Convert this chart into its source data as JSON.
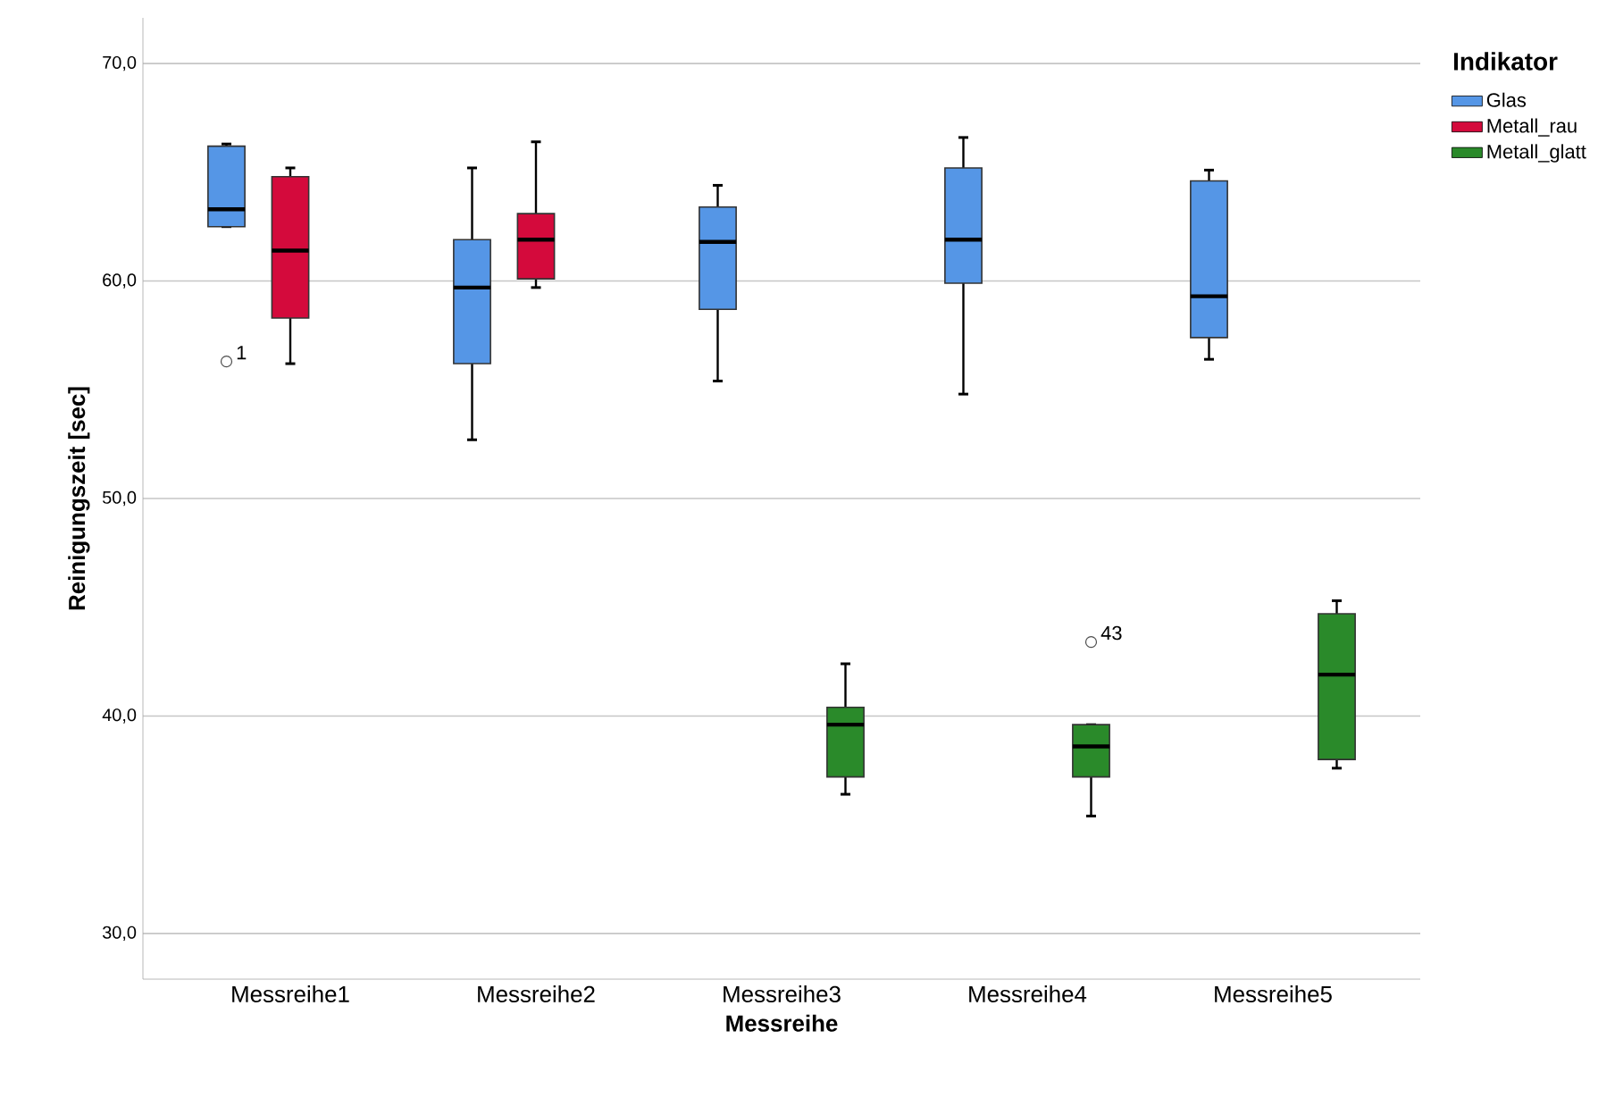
{
  "chart_data": {
    "type": "box",
    "xlabel": "Messreihe",
    "ylabel": "Reinigungszeit [sec]",
    "legend_title": "Indikator",
    "categories": [
      "Messreihe1",
      "Messreihe2",
      "Messreihe3",
      "Messreihe4",
      "Messreihe5"
    ],
    "series": [
      {
        "name": "Glas",
        "color": "#5596e6",
        "boxes": [
          {
            "low": 62.5,
            "q1": 62.5,
            "median": 63.3,
            "q3": 66.2,
            "high": 66.3,
            "outliers": [
              56.3
            ]
          },
          {
            "low": 52.7,
            "q1": 56.2,
            "median": 59.7,
            "q3": 61.9,
            "high": 65.2
          },
          {
            "low": 55.4,
            "q1": 58.7,
            "median": 61.8,
            "q3": 63.4,
            "high": 64.4
          },
          {
            "low": 54.8,
            "q1": 59.9,
            "median": 61.9,
            "q3": 65.2,
            "high": 66.6
          },
          {
            "low": 56.4,
            "q1": 57.4,
            "median": 59.3,
            "q3": 64.6,
            "high": 65.1
          }
        ]
      },
      {
        "name": "Metall_rau",
        "color": "#d40a3c",
        "boxes": [
          {
            "low": 56.2,
            "q1": 58.3,
            "median": 61.4,
            "q3": 64.8,
            "high": 65.2
          },
          {
            "low": 59.7,
            "q1": 60.1,
            "median": 61.9,
            "q3": 63.1,
            "high": 66.4
          },
          null,
          null,
          null
        ]
      },
      {
        "name": "Metall_glatt",
        "color": "#2a8a2a",
        "boxes": [
          null,
          null,
          {
            "low": 36.4,
            "q1": 37.2,
            "median": 39.6,
            "q3": 40.4,
            "high": 42.4
          },
          {
            "low": 35.4,
            "q1": 37.2,
            "median": 38.6,
            "q3": 39.6,
            "high": 39.6,
            "outliers": [
              43.4
            ]
          },
          {
            "low": 37.6,
            "q1": 38.0,
            "median": 41.9,
            "q3": 44.7,
            "high": 45.3
          }
        ]
      }
    ],
    "ylim": [
      27.9,
      72.1
    ],
    "yticks": [
      {
        "value": 30,
        "label": "30,0"
      },
      {
        "value": 40,
        "label": "40,0"
      },
      {
        "value": 50,
        "label": "50,0"
      },
      {
        "value": 60,
        "label": "60,0"
      },
      {
        "value": 70,
        "label": "70,0"
      }
    ],
    "grid": "y",
    "legend": "right",
    "annotations": [
      "1",
      "43"
    ]
  }
}
